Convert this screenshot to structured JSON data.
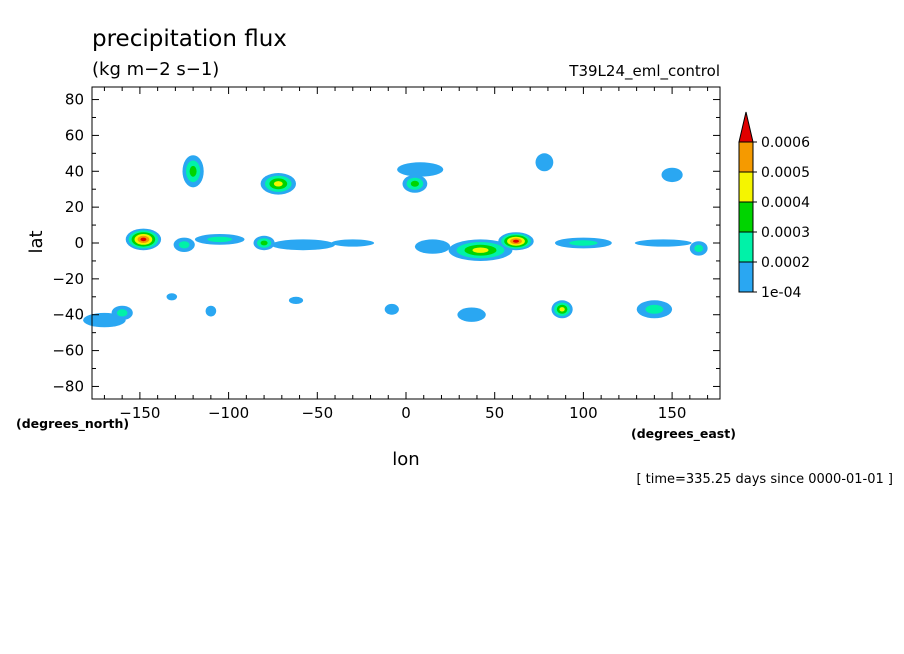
{
  "chart_data": {
    "type": "heatmap",
    "title": "precipitation flux",
    "units": "(kg m−2 s−1)",
    "experiment": "T39L24_eml_control",
    "xlabel": "lon",
    "ylabel": "lat",
    "x_units": "(degrees_east)",
    "y_units": "(degrees_north)",
    "time_note": "[ time=335.25 days since 0000-01-01 ]",
    "xlim": [
      -177,
      177
    ],
    "ylim": [
      -87,
      87
    ],
    "x_ticks": [
      -150,
      -100,
      -50,
      0,
      50,
      100,
      150
    ],
    "y_ticks": [
      80,
      60,
      40,
      20,
      0,
      -20,
      -40,
      -60,
      -80
    ],
    "colorbar": {
      "labels": [
        "1e-04",
        "0.0002",
        "0.0003",
        "0.0004",
        "0.0005",
        "0.0006"
      ],
      "levels": [
        0.0001,
        0.0002,
        0.0003,
        0.0004,
        0.0005,
        0.0006
      ],
      "colors": [
        "#2aa7f2",
        "#00f2a8",
        "#00d400",
        "#f5f500",
        "#f59a00",
        "#e00000"
      ]
    },
    "blobs": [
      {
        "lon": -148,
        "lat": 2,
        "rx": 10,
        "ry": 6,
        "max": 6
      },
      {
        "lon": -125,
        "lat": -1,
        "rx": 6,
        "ry": 4,
        "max": 2
      },
      {
        "lon": -105,
        "lat": 2,
        "rx": 14,
        "ry": 3,
        "max": 2
      },
      {
        "lon": -80,
        "lat": 0,
        "rx": 6,
        "ry": 4,
        "max": 3
      },
      {
        "lon": -58,
        "lat": -1,
        "rx": 18,
        "ry": 3,
        "max": 1
      },
      {
        "lon": -30,
        "lat": 0,
        "rx": 12,
        "ry": 2,
        "max": 1
      },
      {
        "lon": 15,
        "lat": -2,
        "rx": 10,
        "ry": 4,
        "max": 1
      },
      {
        "lon": 42,
        "lat": -4,
        "rx": 18,
        "ry": 6,
        "max": 4
      },
      {
        "lon": 62,
        "lat": 1,
        "rx": 10,
        "ry": 5,
        "max": 6
      },
      {
        "lon": 100,
        "lat": 0,
        "rx": 16,
        "ry": 3,
        "max": 2
      },
      {
        "lon": 145,
        "lat": 0,
        "rx": 16,
        "ry": 2,
        "max": 1
      },
      {
        "lon": 165,
        "lat": -3,
        "rx": 5,
        "ry": 4,
        "max": 2
      },
      {
        "lon": -120,
        "lat": 40,
        "rx": 6,
        "ry": 9,
        "max": 3
      },
      {
        "lon": -72,
        "lat": 33,
        "rx": 10,
        "ry": 6,
        "max": 4
      },
      {
        "lon": 8,
        "lat": 41,
        "rx": 13,
        "ry": 4,
        "max": 1
      },
      {
        "lon": 5,
        "lat": 33,
        "rx": 7,
        "ry": 5,
        "max": 3
      },
      {
        "lon": 78,
        "lat": 45,
        "rx": 5,
        "ry": 5,
        "max": 1
      },
      {
        "lon": 150,
        "lat": 38,
        "rx": 6,
        "ry": 4,
        "max": 1
      },
      {
        "lon": -170,
        "lat": -43,
        "rx": 12,
        "ry": 4,
        "max": 1
      },
      {
        "lon": -160,
        "lat": -39,
        "rx": 6,
        "ry": 4,
        "max": 2
      },
      {
        "lon": -132,
        "lat": -30,
        "rx": 3,
        "ry": 2,
        "max": 1
      },
      {
        "lon": -110,
        "lat": -38,
        "rx": 3,
        "ry": 3,
        "max": 1
      },
      {
        "lon": -62,
        "lat": -32,
        "rx": 4,
        "ry": 2,
        "max": 1
      },
      {
        "lon": -8,
        "lat": -37,
        "rx": 4,
        "ry": 3,
        "max": 1
      },
      {
        "lon": 37,
        "lat": -40,
        "rx": 8,
        "ry": 4,
        "max": 1
      },
      {
        "lon": 88,
        "lat": -37,
        "rx": 6,
        "ry": 5,
        "max": 4
      },
      {
        "lon": 140,
        "lat": -37,
        "rx": 10,
        "ry": 5,
        "max": 2
      }
    ]
  }
}
